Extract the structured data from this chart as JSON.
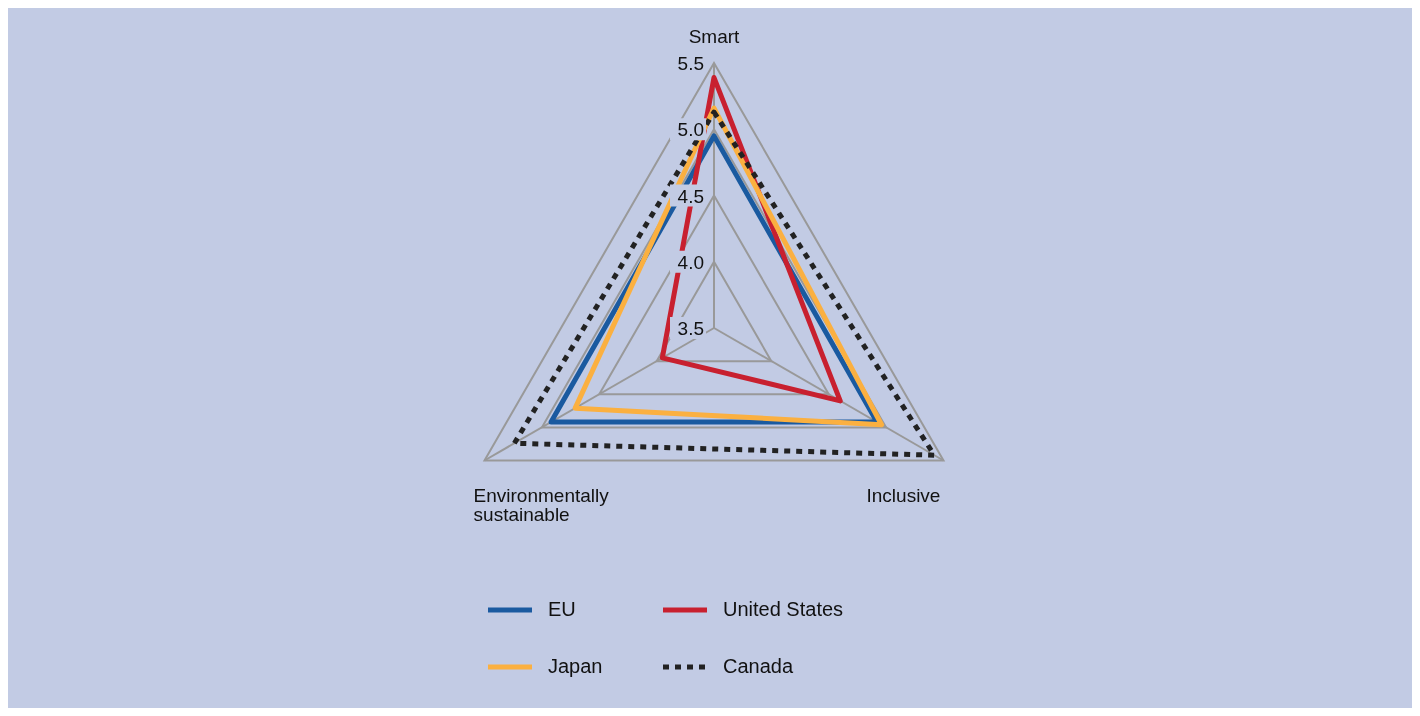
{
  "chart_data": {
    "type": "radar",
    "categories": [
      "Smart",
      "Inclusive",
      "Environmentally sustainable"
    ],
    "series": [
      {
        "name": "EU",
        "color": "#1a5aa0",
        "values": [
          4.95,
          4.92,
          4.92
        ]
      },
      {
        "name": "United States",
        "color": "#c8202f",
        "values": [
          5.39,
          4.6,
          3.95
        ]
      },
      {
        "name": "Japan",
        "color": "#fbb040",
        "values": [
          5.16,
          4.96,
          4.71
        ]
      },
      {
        "name": "Canada",
        "color": "#222222",
        "values": [
          5.13,
          5.42,
          5.24
        ],
        "line_style": "dashed"
      }
    ],
    "ylim": [
      3.5,
      5.5
    ],
    "yticks": [
      3.5,
      {
        "value": 4,
        "label": "4.0"
      },
      4.5,
      {
        "value": 5,
        "label": "5.0"
      },
      5.5
    ],
    "grid": true,
    "legend": "bottom",
    "marker": "none"
  }
}
